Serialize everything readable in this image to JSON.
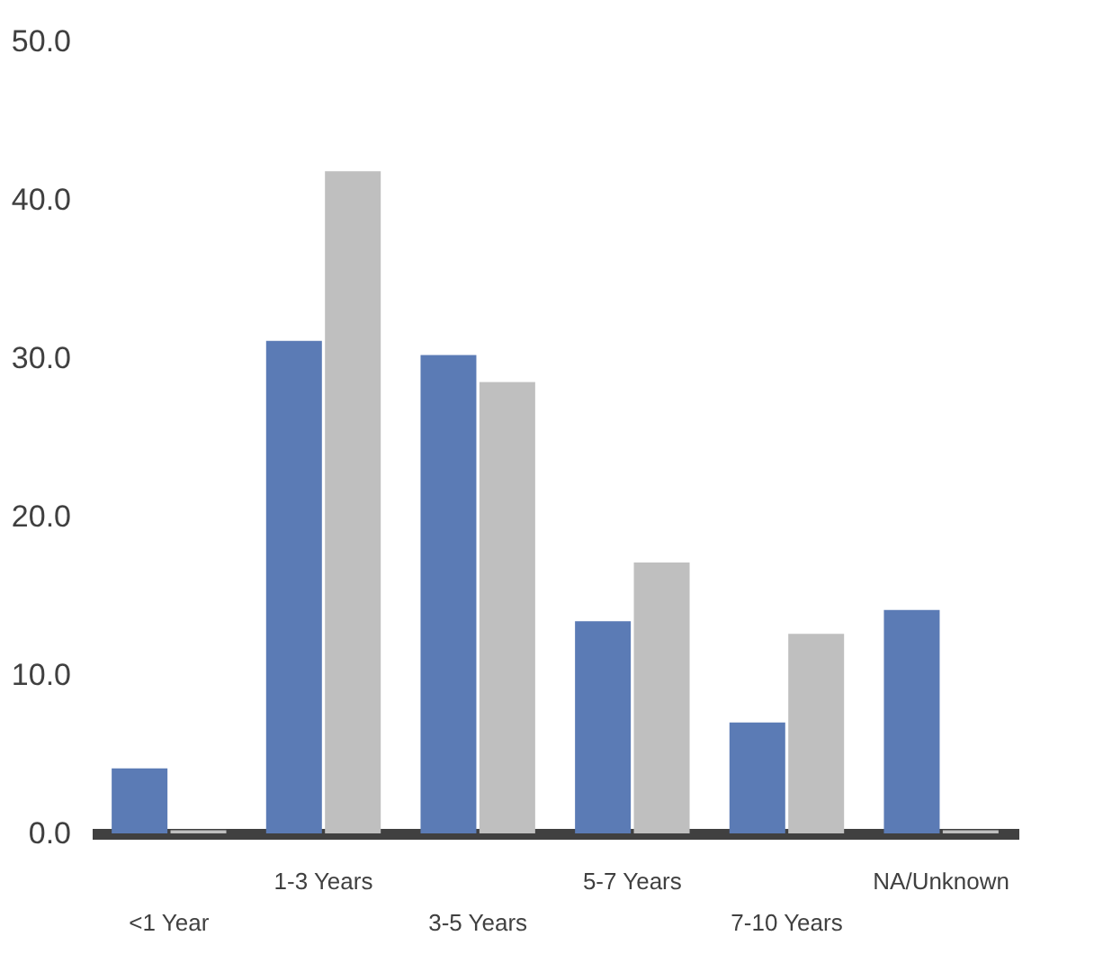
{
  "chart_data": {
    "type": "bar",
    "categories": [
      "<1 Year",
      "1-3 Years",
      "3-5 Years",
      "5-7 Years",
      "7-10 Years",
      "NA/Unknown"
    ],
    "series": [
      {
        "color": "#5b7bb5",
        "values": [
          4.1,
          31.1,
          30.2,
          13.4,
          7.0,
          14.1
        ]
      },
      {
        "color": "#bfbfbf",
        "values": [
          0.2,
          41.8,
          28.5,
          17.1,
          12.6,
          0.2
        ]
      }
    ],
    "ylim": [
      0,
      50
    ],
    "yticks": [
      {
        "value": 0,
        "label": "0.0"
      },
      {
        "value": 10,
        "label": "10.0"
      },
      {
        "value": 20,
        "label": "20.0"
      },
      {
        "value": 30,
        "label": "30.0"
      },
      {
        "value": 40,
        "label": "40.0"
      },
      {
        "value": 50,
        "label": "50.0"
      }
    ],
    "grid": false
  }
}
